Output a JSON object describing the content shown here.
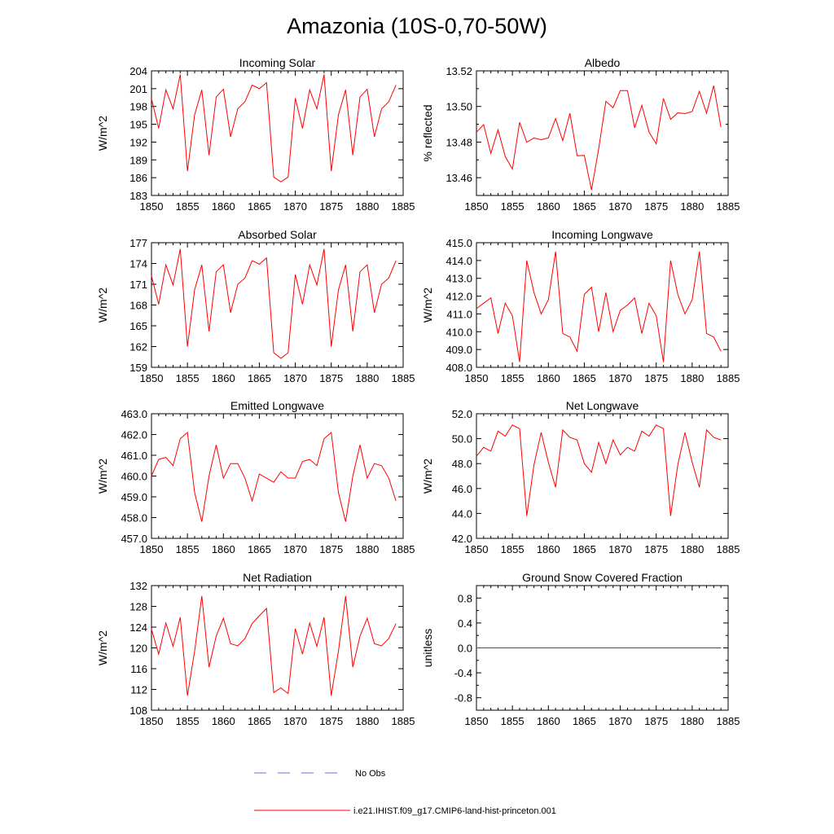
{
  "figure": {
    "title": "Amazonia (10S-0,70-50W)",
    "legend": [
      {
        "label": "No Obs",
        "color": "#6b6bd6",
        "style": "dashed"
      },
      {
        "label": "i.e21.IHIST.f09_g17.CMIP6-land-hist-princeton.001",
        "color": "#ff0000",
        "style": "solid"
      }
    ]
  },
  "chart_data": [
    {
      "type": "line",
      "title": "Incoming Solar",
      "ylabel": "W/m^2",
      "xlim": [
        1850,
        1885
      ],
      "ylim": [
        183,
        204
      ],
      "xticks": [
        "1850",
        "1855",
        "1860",
        "1865",
        "1870",
        "1875",
        "1880",
        "1885"
      ],
      "yticks": [
        "183",
        "186",
        "189",
        "192",
        "195",
        "198",
        "201",
        "204"
      ],
      "x": [
        1850,
        1851,
        1852,
        1853,
        1854,
        1855,
        1856,
        1857,
        1858,
        1859,
        1860,
        1861,
        1862,
        1863,
        1864,
        1865,
        1866,
        1867,
        1868,
        1869,
        1870,
        1871,
        1872,
        1873,
        1874,
        1875,
        1876,
        1877,
        1878,
        1879,
        1880,
        1881,
        1882,
        1883,
        1884
      ],
      "series": [
        {
          "color": "#ff0000",
          "values": [
            199.3,
            194.3,
            200.8,
            197.6,
            203.4,
            187.1,
            196.6,
            200.8,
            189.8,
            199.6,
            200.9,
            192.9,
            197.6,
            198.8,
            201.6,
            201.0,
            202.0,
            186.1,
            185.3,
            186.1,
            199.4,
            194.3,
            200.8,
            197.6,
            203.4,
            187.1,
            196.6,
            200.8,
            189.8,
            199.6,
            200.9,
            192.9,
            197.6,
            198.8,
            201.6
          ]
        }
      ]
    },
    {
      "type": "line",
      "title": "Albedo",
      "ylabel": "% reflected",
      "xlim": [
        1850,
        1885
      ],
      "ylim": [
        13.45,
        13.52
      ],
      "xticks": [
        "1850",
        "1855",
        "1860",
        "1865",
        "1870",
        "1875",
        "1880",
        "1885"
      ],
      "yticks": [
        "13.46",
        "13.48",
        "13.50",
        "13.52"
      ],
      "ytick_values": [
        13.46,
        13.48,
        13.5,
        13.52
      ],
      "minor_yticks": [
        13.45,
        13.47,
        13.49,
        13.51
      ],
      "x": [
        1850,
        1851,
        1852,
        1853,
        1854,
        1855,
        1856,
        1857,
        1858,
        1859,
        1860,
        1861,
        1862,
        1863,
        1864,
        1865,
        1866,
        1867,
        1868,
        1869,
        1870,
        1871,
        1872,
        1873,
        1874,
        1875,
        1876,
        1877,
        1878,
        1879,
        1880,
        1881,
        1882,
        1883,
        1884
      ],
      "series": [
        {
          "color": "#ff0000",
          "values": [
            13.4855,
            13.4898,
            13.4737,
            13.4869,
            13.4719,
            13.4648,
            13.4911,
            13.4799,
            13.4823,
            13.4813,
            13.4824,
            13.4932,
            13.4808,
            13.4962,
            13.4723,
            13.4725,
            13.4531,
            13.4763,
            13.5029,
            13.4993,
            13.5089,
            13.5089,
            13.488,
            13.5006,
            13.4856,
            13.479,
            13.5045,
            13.4928,
            13.4964,
            13.496,
            13.4972,
            13.5085,
            13.4962,
            13.5117,
            13.4884
          ]
        }
      ]
    },
    {
      "type": "line",
      "title": "Absorbed Solar",
      "ylabel": "W/m^2",
      "xlim": [
        1850,
        1885
      ],
      "ylim": [
        159,
        177
      ],
      "xticks": [
        "1850",
        "1855",
        "1860",
        "1865",
        "1870",
        "1875",
        "1880",
        "1885"
      ],
      "yticks": [
        "159",
        "162",
        "165",
        "168",
        "171",
        "174",
        "177"
      ],
      "x": [
        1850,
        1851,
        1852,
        1853,
        1854,
        1855,
        1856,
        1857,
        1858,
        1859,
        1860,
        1861,
        1862,
        1863,
        1864,
        1865,
        1866,
        1867,
        1868,
        1869,
        1870,
        1871,
        1872,
        1873,
        1874,
        1875,
        1876,
        1877,
        1878,
        1879,
        1880,
        1881,
        1882,
        1883,
        1884
      ],
      "series": [
        {
          "color": "#ff0000",
          "values": [
            172.2,
            168.1,
            173.8,
            170.9,
            176.1,
            162.0,
            170.2,
            173.8,
            164.2,
            172.8,
            173.8,
            166.9,
            171.0,
            171.9,
            174.4,
            173.9,
            174.8,
            161.1,
            160.3,
            161.1,
            172.4,
            168.1,
            173.8,
            170.9,
            176.1,
            162.0,
            170.2,
            173.8,
            164.2,
            172.8,
            173.8,
            166.9,
            171.0,
            171.9,
            174.4
          ]
        }
      ]
    },
    {
      "type": "line",
      "title": "Incoming Longwave",
      "ylabel": "W/m^2",
      "xlim": [
        1850,
        1885
      ],
      "ylim": [
        408.0,
        415.0
      ],
      "xticks": [
        "1850",
        "1855",
        "1860",
        "1865",
        "1870",
        "1875",
        "1880",
        "1885"
      ],
      "yticks": [
        "408.0",
        "409.0",
        "410.0",
        "411.0",
        "412.0",
        "413.0",
        "414.0",
        "415.0"
      ],
      "x": [
        1850,
        1851,
        1852,
        1853,
        1854,
        1855,
        1856,
        1857,
        1858,
        1859,
        1860,
        1861,
        1862,
        1863,
        1864,
        1865,
        1866,
        1867,
        1868,
        1869,
        1870,
        1871,
        1872,
        1873,
        1874,
        1875,
        1876,
        1877,
        1878,
        1879,
        1880,
        1881,
        1882,
        1883,
        1884
      ],
      "series": [
        {
          "color": "#ff0000",
          "values": [
            411.3,
            411.6,
            411.9,
            409.9,
            411.6,
            410.9,
            408.3,
            414.0,
            412.2,
            411.0,
            411.8,
            414.5,
            409.9,
            409.7,
            408.9,
            412.1,
            412.5,
            410.0,
            412.2,
            410.0,
            411.2,
            411.5,
            411.9,
            409.9,
            411.6,
            410.9,
            408.3,
            414.0,
            412.1,
            411.0,
            411.8,
            414.5,
            409.9,
            409.7,
            408.9
          ]
        }
      ]
    },
    {
      "type": "line",
      "title": "Emitted Longwave",
      "ylabel": "W/m^2",
      "xlim": [
        1850,
        1885
      ],
      "ylim": [
        457.0,
        463.0
      ],
      "xticks": [
        "1850",
        "1855",
        "1860",
        "1865",
        "1870",
        "1875",
        "1880",
        "1885"
      ],
      "yticks": [
        "457.0",
        "458.0",
        "459.0",
        "460.0",
        "461.0",
        "462.0",
        "463.0"
      ],
      "x": [
        1850,
        1851,
        1852,
        1853,
        1854,
        1855,
        1856,
        1857,
        1858,
        1859,
        1860,
        1861,
        1862,
        1863,
        1864,
        1865,
        1866,
        1867,
        1868,
        1869,
        1870,
        1871,
        1872,
        1873,
        1874,
        1875,
        1876,
        1877,
        1878,
        1879,
        1880,
        1881,
        1882,
        1883,
        1884
      ],
      "series": [
        {
          "color": "#ff0000",
          "values": [
            460.0,
            460.8,
            460.9,
            460.5,
            461.8,
            462.1,
            459.2,
            457.8,
            460.0,
            461.5,
            459.9,
            460.6,
            460.6,
            459.9,
            458.8,
            460.1,
            459.9,
            459.7,
            460.2,
            459.9,
            459.9,
            460.7,
            460.8,
            460.5,
            461.8,
            462.1,
            459.2,
            457.8,
            460.0,
            461.5,
            459.9,
            460.6,
            460.5,
            459.9,
            458.8
          ]
        }
      ]
    },
    {
      "type": "line",
      "title": "Net Longwave",
      "ylabel": "W/m^2",
      "xlim": [
        1850,
        1885
      ],
      "ylim": [
        42.0,
        52.0
      ],
      "xticks": [
        "1850",
        "1855",
        "1860",
        "1865",
        "1870",
        "1875",
        "1880",
        "1885"
      ],
      "yticks": [
        "42.0",
        "44.0",
        "46.0",
        "48.0",
        "50.0",
        "52.0"
      ],
      "x": [
        1850,
        1851,
        1852,
        1853,
        1854,
        1855,
        1856,
        1857,
        1858,
        1859,
        1860,
        1861,
        1862,
        1863,
        1864,
        1865,
        1866,
        1867,
        1868,
        1869,
        1870,
        1871,
        1872,
        1873,
        1874,
        1875,
        1876,
        1877,
        1878,
        1879,
        1880,
        1881,
        1882,
        1883,
        1884
      ],
      "series": [
        {
          "color": "#ff0000",
          "values": [
            48.6,
            49.3,
            49.0,
            50.6,
            50.2,
            51.1,
            50.8,
            43.8,
            47.9,
            50.5,
            48.1,
            46.1,
            50.7,
            50.1,
            49.9,
            48.0,
            47.3,
            49.7,
            48.0,
            49.9,
            48.7,
            49.3,
            49.0,
            50.6,
            50.2,
            51.1,
            50.8,
            43.8,
            47.9,
            50.5,
            48.1,
            46.1,
            50.7,
            50.1,
            49.9
          ]
        }
      ]
    },
    {
      "type": "line",
      "title": "Net Radiation",
      "ylabel": "W/m^2",
      "xlim": [
        1850,
        1885
      ],
      "ylim": [
        108,
        132
      ],
      "xticks": [
        "1850",
        "1855",
        "1860",
        "1865",
        "1870",
        "1875",
        "1880",
        "1885"
      ],
      "yticks": [
        "108",
        "112",
        "116",
        "120",
        "124",
        "128",
        "132"
      ],
      "x": [
        1850,
        1851,
        1852,
        1853,
        1854,
        1855,
        1856,
        1857,
        1858,
        1859,
        1860,
        1861,
        1862,
        1863,
        1864,
        1865,
        1866,
        1867,
        1868,
        1869,
        1870,
        1871,
        1872,
        1873,
        1874,
        1875,
        1876,
        1877,
        1878,
        1879,
        1880,
        1881,
        1882,
        1883,
        1884
      ],
      "series": [
        {
          "color": "#ff0000",
          "values": [
            123.6,
            118.8,
            124.8,
            120.3,
            125.9,
            110.8,
            119.4,
            130.0,
            116.3,
            122.3,
            125.7,
            120.8,
            120.4,
            121.8,
            124.7,
            126.2,
            127.6,
            111.4,
            112.3,
            111.2,
            123.7,
            118.8,
            124.8,
            120.3,
            125.9,
            110.8,
            119.4,
            130.0,
            116.3,
            122.3,
            125.7,
            120.8,
            120.4,
            121.8,
            124.7
          ]
        }
      ]
    },
    {
      "type": "line",
      "title": "Ground Snow Covered Fraction",
      "ylabel": "unitless",
      "xlim": [
        1850,
        1885
      ],
      "ylim": [
        -1.0,
        1.0
      ],
      "xticks": [
        "1850",
        "1855",
        "1860",
        "1865",
        "1870",
        "1875",
        "1880",
        "1885"
      ],
      "yticks": [
        "-0.8",
        "-0.4",
        "0.0",
        "0.4",
        "0.8"
      ],
      "ytick_values": [
        -0.8,
        -0.4,
        0.0,
        0.4,
        0.8
      ],
      "minor_yticks": [
        -1.0,
        -0.6,
        -0.2,
        0.2,
        0.6,
        1.0
      ],
      "x": [
        1850,
        1884
      ],
      "series": [
        {
          "color": "#ff0000",
          "values": [
            0.0,
            0.0
          ]
        }
      ]
    }
  ]
}
